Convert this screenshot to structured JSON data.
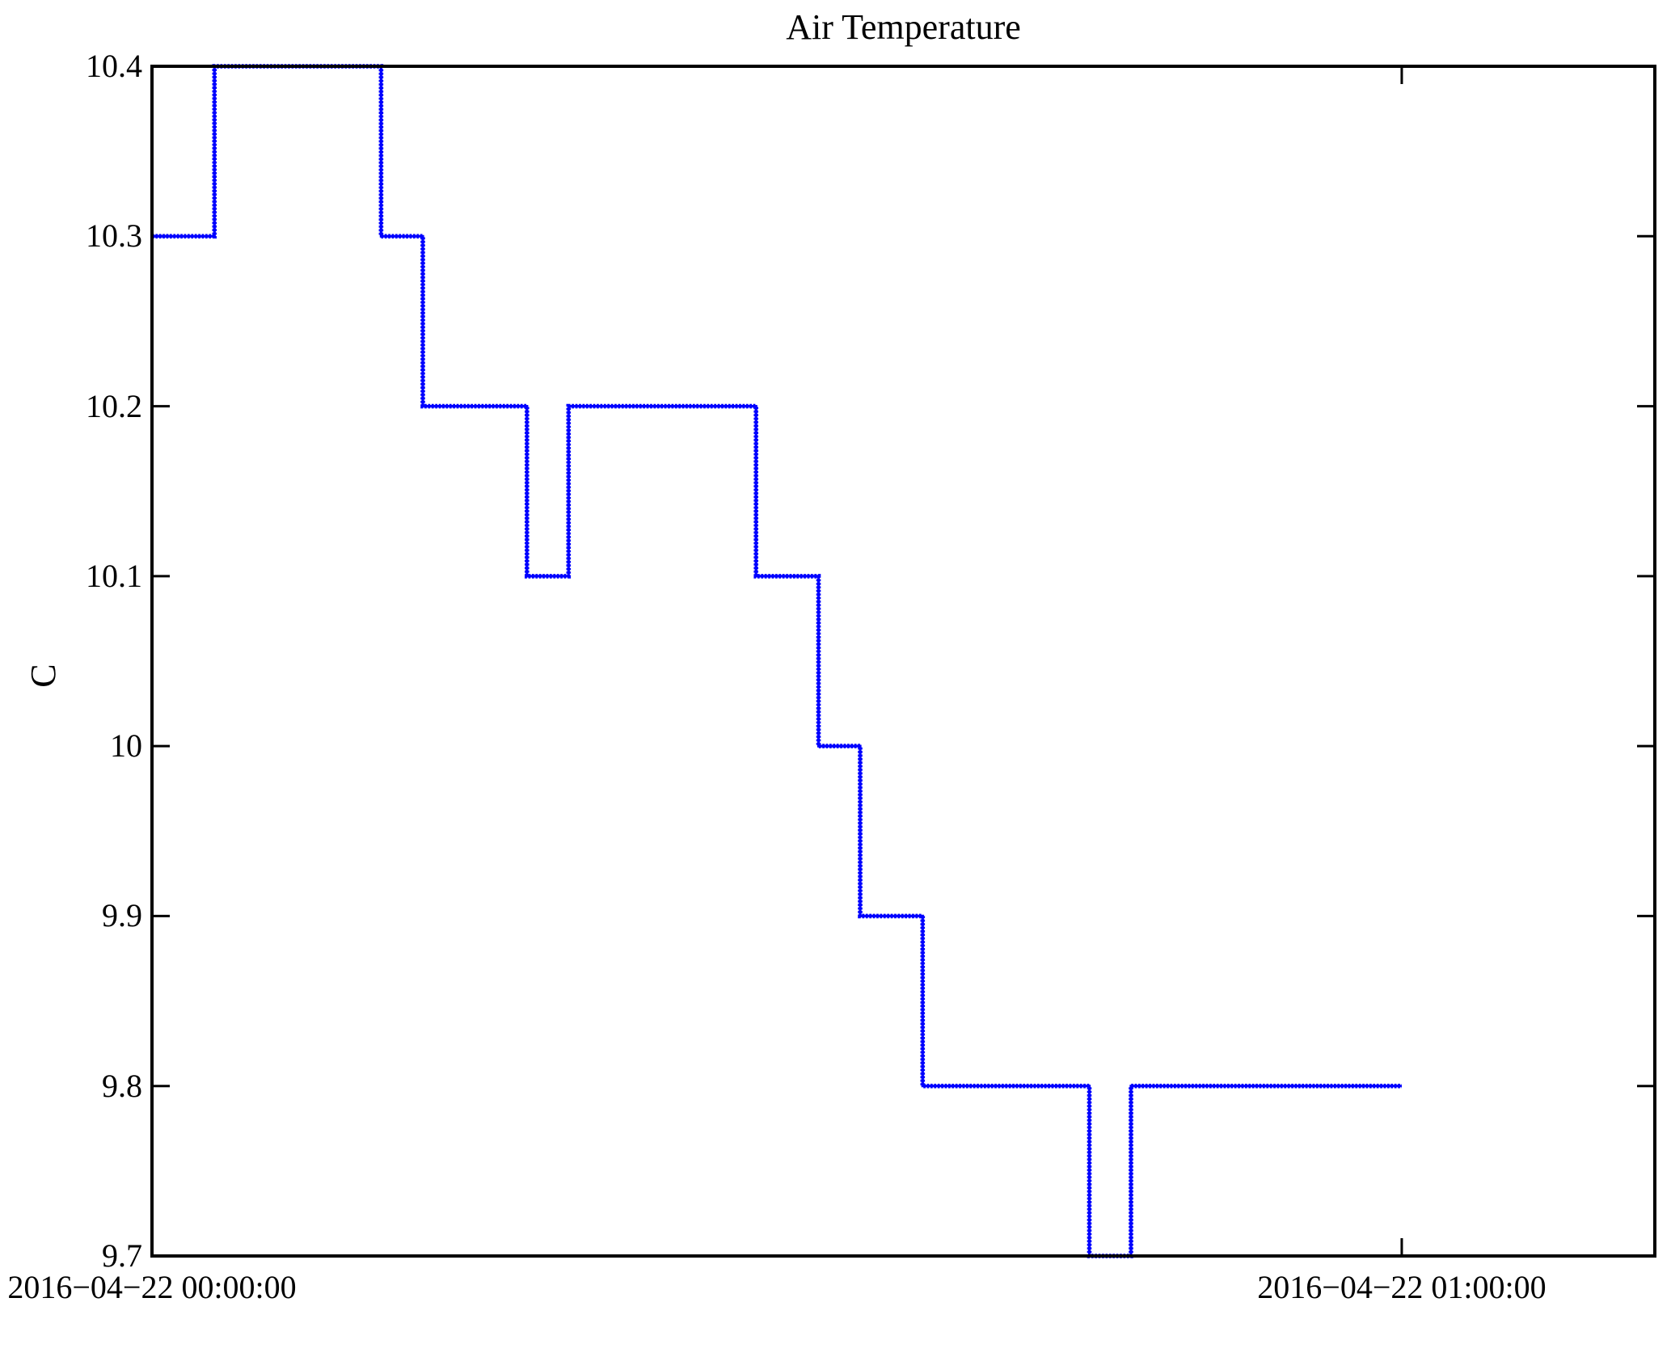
{
  "chart_data": {
    "type": "line",
    "step_mode": "post",
    "title": "Air Temperature",
    "ylabel": "C",
    "xlabel": "",
    "legend": null,
    "grid": false,
    "line_color": "#0000ff",
    "axis_color": "#000000",
    "background_color": "#ffffff",
    "ylim": [
      9.7,
      10.4
    ],
    "xlim_minutes": [
      0,
      72.15
    ],
    "x_ticks": [
      {
        "minute": 0,
        "label": "2016−04−22 00:00:00"
      },
      {
        "minute": 60,
        "label": "2016−04−22 01:00:00"
      }
    ],
    "y_ticks": [
      {
        "value": 9.7,
        "label": "9.7"
      },
      {
        "value": 9.8,
        "label": "9.8"
      },
      {
        "value": 9.9,
        "label": "9.9"
      },
      {
        "value": 10.0,
        "label": "10"
      },
      {
        "value": 10.1,
        "label": "10.1"
      },
      {
        "value": 10.2,
        "label": "10.2"
      },
      {
        "value": 10.3,
        "label": "10.3"
      },
      {
        "value": 10.4,
        "label": "10.4"
      }
    ],
    "series": [
      {
        "name": "Air Temperature",
        "unit": "C",
        "points_minute_value": [
          [
            0,
            10.3
          ],
          [
            3,
            10.4
          ],
          [
            11,
            10.3
          ],
          [
            13,
            10.2
          ],
          [
            18,
            10.1
          ],
          [
            20,
            10.2
          ],
          [
            29,
            10.1
          ],
          [
            32,
            10.0
          ],
          [
            34,
            9.9
          ],
          [
            37,
            9.8
          ],
          [
            45,
            9.7
          ],
          [
            47,
            9.8
          ],
          [
            60,
            9.8
          ]
        ]
      }
    ]
  }
}
